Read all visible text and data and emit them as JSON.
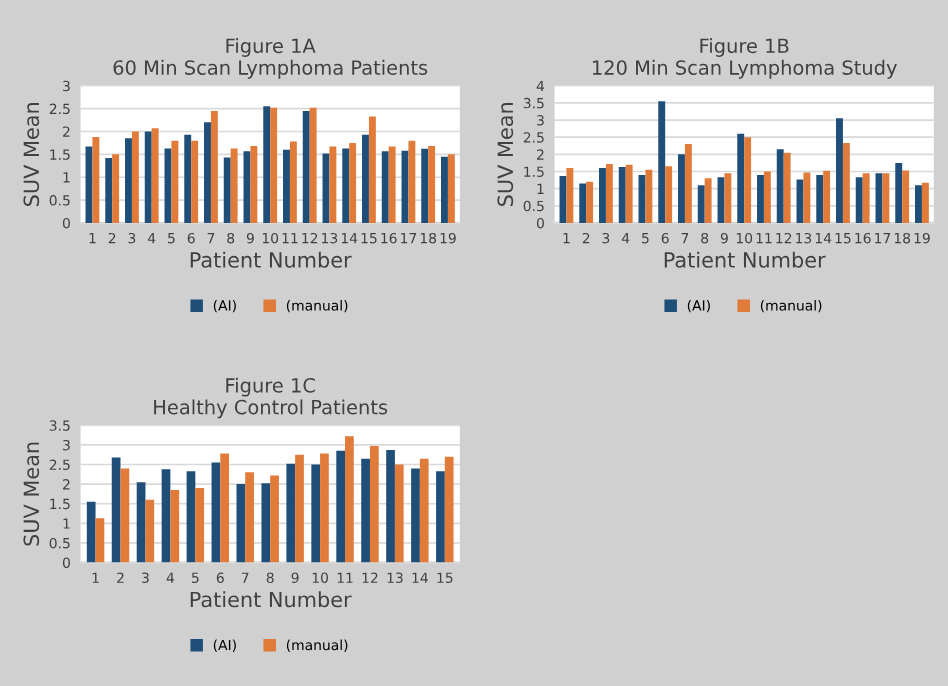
{
  "chart_data": [
    {
      "type": "bar",
      "title": "Figure 1A",
      "subtitle": "60 Min Scan Lymphoma Patients",
      "xlabel": "Patient Number",
      "ylabel": "SUV Mean",
      "categories": [
        "1",
        "2",
        "3",
        "4",
        "5",
        "6",
        "7",
        "8",
        "9",
        "10",
        "11",
        "12",
        "13",
        "14",
        "15",
        "16",
        "17",
        "18",
        "19"
      ],
      "series": [
        {
          "name": "(AI)",
          "color": "#1f4e79",
          "values": [
            1.67,
            1.42,
            1.85,
            2.0,
            1.63,
            1.93,
            2.2,
            1.43,
            1.57,
            2.55,
            1.6,
            2.45,
            1.52,
            1.63,
            1.93,
            1.57,
            1.58,
            1.62,
            1.45
          ]
        },
        {
          "name": "(manual)",
          "color": "#e07b39",
          "values": [
            1.88,
            1.5,
            2.0,
            2.07,
            1.8,
            1.8,
            2.45,
            1.63,
            1.68,
            2.52,
            1.78,
            2.52,
            1.67,
            1.75,
            2.33,
            1.67,
            1.8,
            1.68,
            1.5
          ]
        }
      ],
      "ylim": [
        0,
        3
      ],
      "yticks": [
        0,
        0.5,
        1,
        1.5,
        2,
        2.5,
        3
      ],
      "grid": "y",
      "legend": "bottom"
    },
    {
      "type": "bar",
      "title": "Figure 1B",
      "subtitle": "120 Min Scan Lymphoma Study",
      "xlabel": "Patient Number",
      "ylabel": "SUV Mean",
      "categories": [
        "1",
        "2",
        "3",
        "4",
        "5",
        "6",
        "7",
        "8",
        "9",
        "10",
        "11",
        "12",
        "13",
        "14",
        "15",
        "16",
        "17",
        "18",
        "19"
      ],
      "series": [
        {
          "name": "(AI)",
          "color": "#1f4e79",
          "values": [
            1.37,
            1.15,
            1.6,
            1.63,
            1.4,
            3.55,
            2.0,
            1.1,
            1.33,
            2.6,
            1.4,
            2.15,
            1.27,
            1.4,
            3.05,
            1.33,
            1.45,
            1.75,
            1.1
          ]
        },
        {
          "name": "(manual)",
          "color": "#e07b39",
          "values": [
            1.6,
            1.2,
            1.72,
            1.7,
            1.55,
            1.65,
            2.3,
            1.3,
            1.45,
            2.5,
            1.5,
            2.05,
            1.47,
            1.52,
            2.33,
            1.45,
            1.45,
            1.53,
            1.17
          ]
        }
      ],
      "ylim": [
        0,
        4
      ],
      "yticks": [
        0,
        0.5,
        1,
        1.5,
        2,
        2.5,
        3,
        3.5,
        4
      ],
      "grid": "y",
      "legend": "bottom"
    },
    {
      "type": "bar",
      "title": "Figure 1C",
      "subtitle": "Healthy Control Patients",
      "xlabel": "Patient Number",
      "ylabel": "SUV Mean",
      "categories": [
        "1",
        "2",
        "3",
        "4",
        "5",
        "6",
        "7",
        "8",
        "9",
        "10",
        "11",
        "12",
        "13",
        "14",
        "15"
      ],
      "series": [
        {
          "name": "(AI)",
          "color": "#1f4e79",
          "values": [
            1.55,
            2.68,
            2.05,
            2.38,
            2.33,
            2.55,
            2.0,
            2.02,
            2.52,
            2.5,
            2.85,
            2.65,
            2.87,
            2.4,
            2.33
          ]
        },
        {
          "name": "(manual)",
          "color": "#e07b39",
          "values": [
            1.13,
            2.4,
            1.6,
            1.85,
            1.9,
            2.78,
            2.3,
            2.22,
            2.75,
            2.78,
            3.22,
            2.97,
            2.5,
            2.65,
            2.7
          ]
        }
      ],
      "ylim": [
        0,
        3.5
      ],
      "yticks": [
        0,
        0.5,
        1,
        1.5,
        2,
        2.5,
        3,
        3.5
      ],
      "grid": "y",
      "legend": "bottom"
    }
  ]
}
